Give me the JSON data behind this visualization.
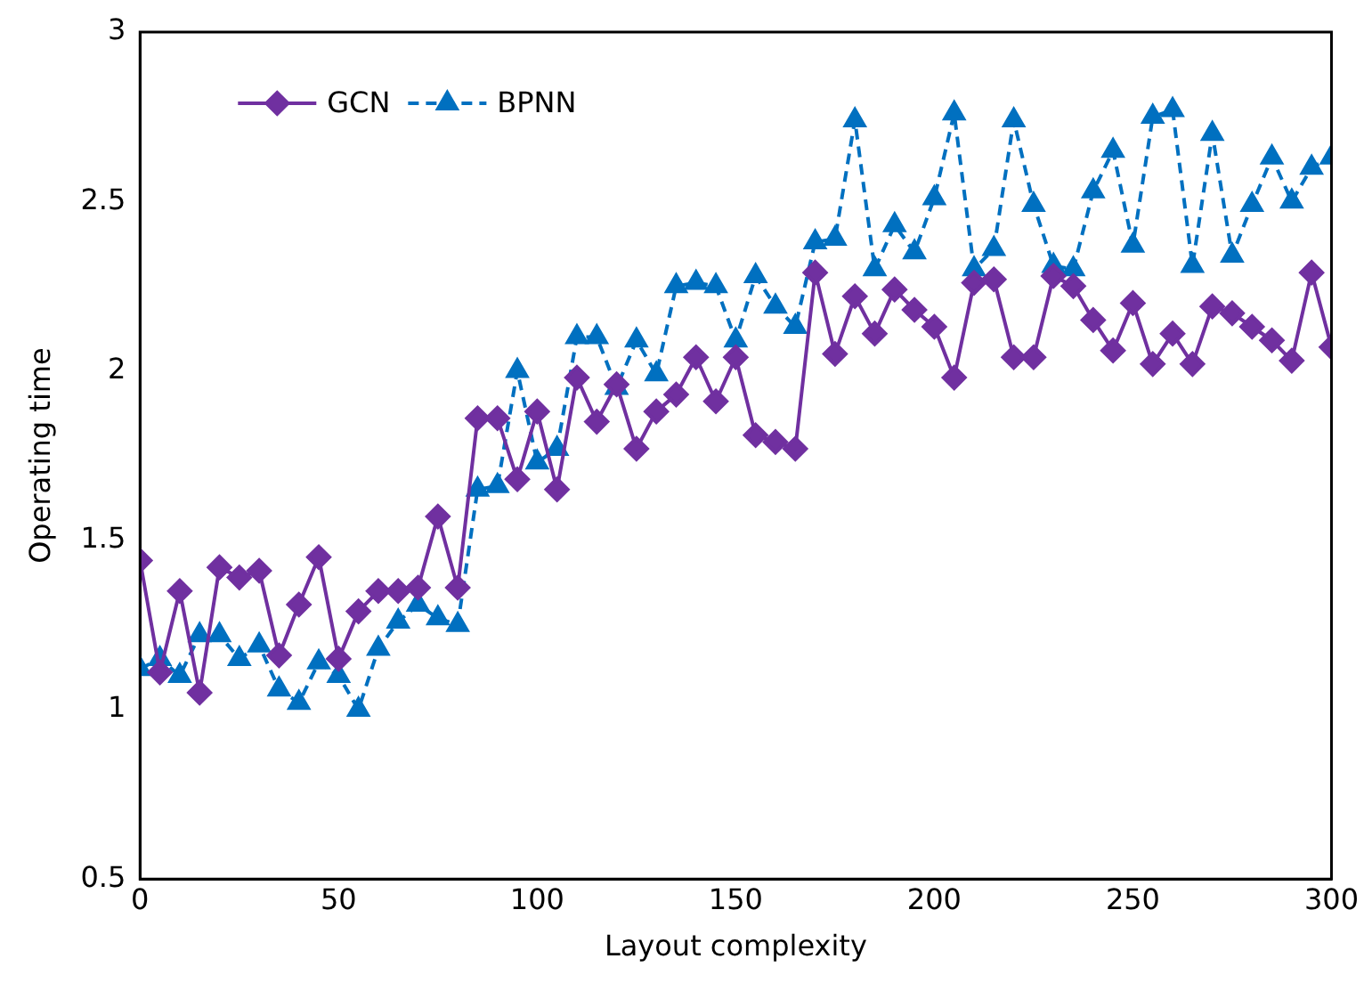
{
  "chart_data": {
    "type": "line",
    "xlabel": "Layout complexity",
    "ylabel": "Operating time",
    "x": [
      0,
      5,
      10,
      15,
      20,
      25,
      30,
      35,
      40,
      45,
      50,
      55,
      60,
      65,
      70,
      75,
      80,
      85,
      90,
      95,
      100,
      105,
      110,
      115,
      120,
      125,
      130,
      135,
      140,
      145,
      150,
      155,
      160,
      165,
      170,
      175,
      180,
      185,
      190,
      195,
      200,
      205,
      210,
      215,
      220,
      225,
      230,
      235,
      240,
      245,
      250,
      255,
      260,
      265,
      270,
      275,
      280,
      285,
      290,
      295,
      300
    ],
    "series": [
      {
        "name": "GCN",
        "color": "#7030a0",
        "marker": "diamond",
        "line_style": "solid",
        "values": [
          1.44,
          1.11,
          1.35,
          1.05,
          1.42,
          1.39,
          1.41,
          1.16,
          1.31,
          1.45,
          1.15,
          1.29,
          1.35,
          1.35,
          1.36,
          1.57,
          1.36,
          1.86,
          1.86,
          1.68,
          1.88,
          1.65,
          1.98,
          1.85,
          1.96,
          1.77,
          1.88,
          1.93,
          2.04,
          1.91,
          2.04,
          1.81,
          1.79,
          1.77,
          2.29,
          2.05,
          2.22,
          2.11,
          2.24,
          2.18,
          2.13,
          1.98,
          2.26,
          2.27,
          2.04,
          2.04,
          2.28,
          2.25,
          2.15,
          2.06,
          2.2,
          2.02,
          2.11,
          2.02,
          2.19,
          2.17,
          2.13,
          2.09,
          2.03,
          2.29,
          2.07
        ]
      },
      {
        "name": "BPNN",
        "color": "#0070c0",
        "marker": "triangle",
        "line_style": "dashed",
        "values": [
          1.12,
          1.15,
          1.1,
          1.22,
          1.22,
          1.15,
          1.19,
          1.06,
          1.02,
          1.14,
          1.1,
          1.0,
          1.18,
          1.26,
          1.31,
          1.27,
          1.25,
          1.65,
          1.66,
          2.0,
          1.73,
          1.77,
          2.1,
          2.1,
          1.95,
          2.09,
          1.99,
          2.25,
          2.26,
          2.25,
          2.09,
          2.28,
          2.19,
          2.13,
          2.38,
          2.39,
          2.74,
          2.3,
          2.43,
          2.35,
          2.51,
          2.76,
          2.3,
          2.36,
          2.74,
          2.49,
          2.31,
          2.3,
          2.53,
          2.65,
          2.37,
          2.75,
          2.77,
          2.31,
          2.7,
          2.34,
          2.49,
          2.63,
          2.5,
          2.6,
          2.63
        ]
      }
    ],
    "xlim": [
      0,
      300
    ],
    "xticks": [
      0,
      50,
      100,
      150,
      200,
      250,
      300
    ],
    "ylim": [
      0.5,
      3
    ],
    "yticks": [
      0.5,
      1,
      1.5,
      2,
      2.5,
      3
    ],
    "grid": false,
    "legend": "top left"
  }
}
